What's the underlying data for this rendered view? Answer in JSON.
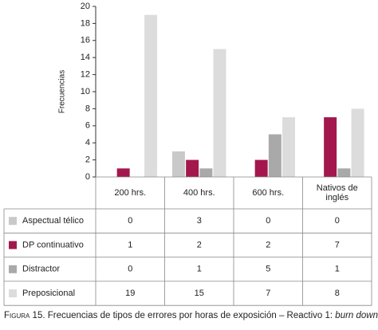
{
  "chart_data": {
    "type": "bar",
    "caption": {
      "label": "Figura 15.",
      "text": "Frecuencias de tipos de errores por horas de exposición – Reactivo 1:",
      "emphasis": "burn down"
    },
    "y_label": "Frecuencias",
    "categories": [
      "200 hrs.",
      "400 hrs.",
      "600 hrs.",
      "Nativos de inglés"
    ],
    "series": [
      {
        "name": "Aspectual télico",
        "color": "#c9c9c9",
        "values": [
          0,
          3,
          0,
          0
        ]
      },
      {
        "name": "DP continuativo",
        "color": "#a3174d",
        "values": [
          1,
          2,
          2,
          7
        ]
      },
      {
        "name": "Distractor",
        "color": "#a9a9a9",
        "values": [
          0,
          1,
          5,
          1
        ]
      },
      {
        "name": "Preposicional",
        "color": "#dcdcdc",
        "values": [
          19,
          15,
          7,
          8
        ]
      }
    ],
    "ylim": [
      0,
      20
    ],
    "yticks": [
      0,
      2,
      4,
      6,
      8,
      10,
      12,
      14,
      16,
      18,
      20
    ]
  }
}
